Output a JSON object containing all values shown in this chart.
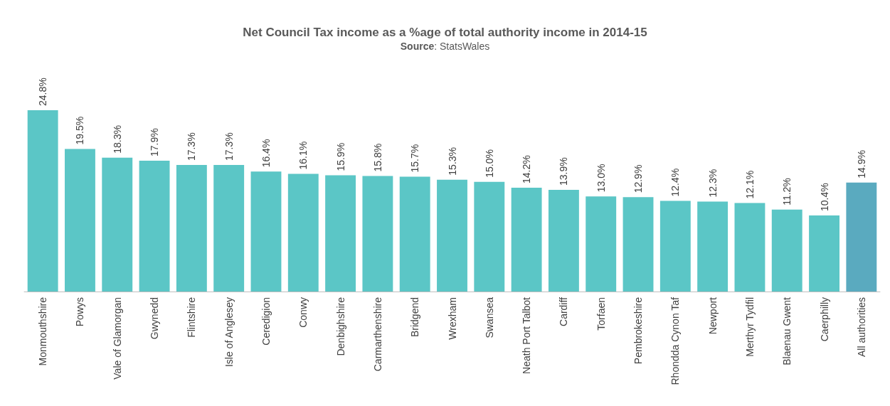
{
  "chart_data": {
    "type": "bar",
    "title": "Net Council Tax income as a %age of total authority income in 2014-15",
    "subtitle": "Source: StatsWales",
    "categories": [
      "Monmouthshire",
      "Powys",
      "Vale of Glamorgan",
      "Gwynedd",
      "Flintshire",
      "Isle of Anglesey",
      "Ceredigion",
      "Conwy",
      "Denbighshire",
      "Carmarthenshire",
      "Bridgend",
      "Wrexham",
      "Swansea",
      "Neath Port Talbot",
      "Cardiff",
      "Torfaen",
      "Pembrokeshire",
      "Rhondda Cynon Taf",
      "Newport",
      "Merthyr Tydfil",
      "Blaenau Gwent",
      "Caerphilly",
      "All authorities"
    ],
    "values": [
      24.8,
      19.5,
      18.3,
      17.9,
      17.3,
      17.3,
      16.4,
      16.1,
      15.9,
      15.8,
      15.7,
      15.3,
      15.0,
      14.2,
      13.9,
      13.0,
      12.9,
      12.4,
      12.3,
      12.1,
      11.2,
      10.4,
      14.9
    ],
    "value_labels": [
      "24.8%",
      "19.5%",
      "18.3%",
      "17.9%",
      "17.3%",
      "17.3%",
      "16.4%",
      "16.1%",
      "15.9%",
      "15.8%",
      "15.7%",
      "15.3%",
      "15.0%",
      "14.2%",
      "13.9%",
      "13.0%",
      "12.9%",
      "12.4%",
      "12.3%",
      "12.1%",
      "11.2%",
      "10.4%",
      "14.9%"
    ],
    "colors": [
      "#5bc6c6",
      "#5bc6c6",
      "#5bc6c6",
      "#5bc6c6",
      "#5bc6c6",
      "#5bc6c6",
      "#5bc6c6",
      "#5bc6c6",
      "#5bc6c6",
      "#5bc6c6",
      "#5bc6c6",
      "#5bc6c6",
      "#5bc6c6",
      "#5bc6c6",
      "#5bc6c6",
      "#5bc6c6",
      "#5bc6c6",
      "#5bc6c6",
      "#5bc6c6",
      "#5bc6c6",
      "#5bc6c6",
      "#5bc6c6",
      "#5aaabf"
    ]
  }
}
